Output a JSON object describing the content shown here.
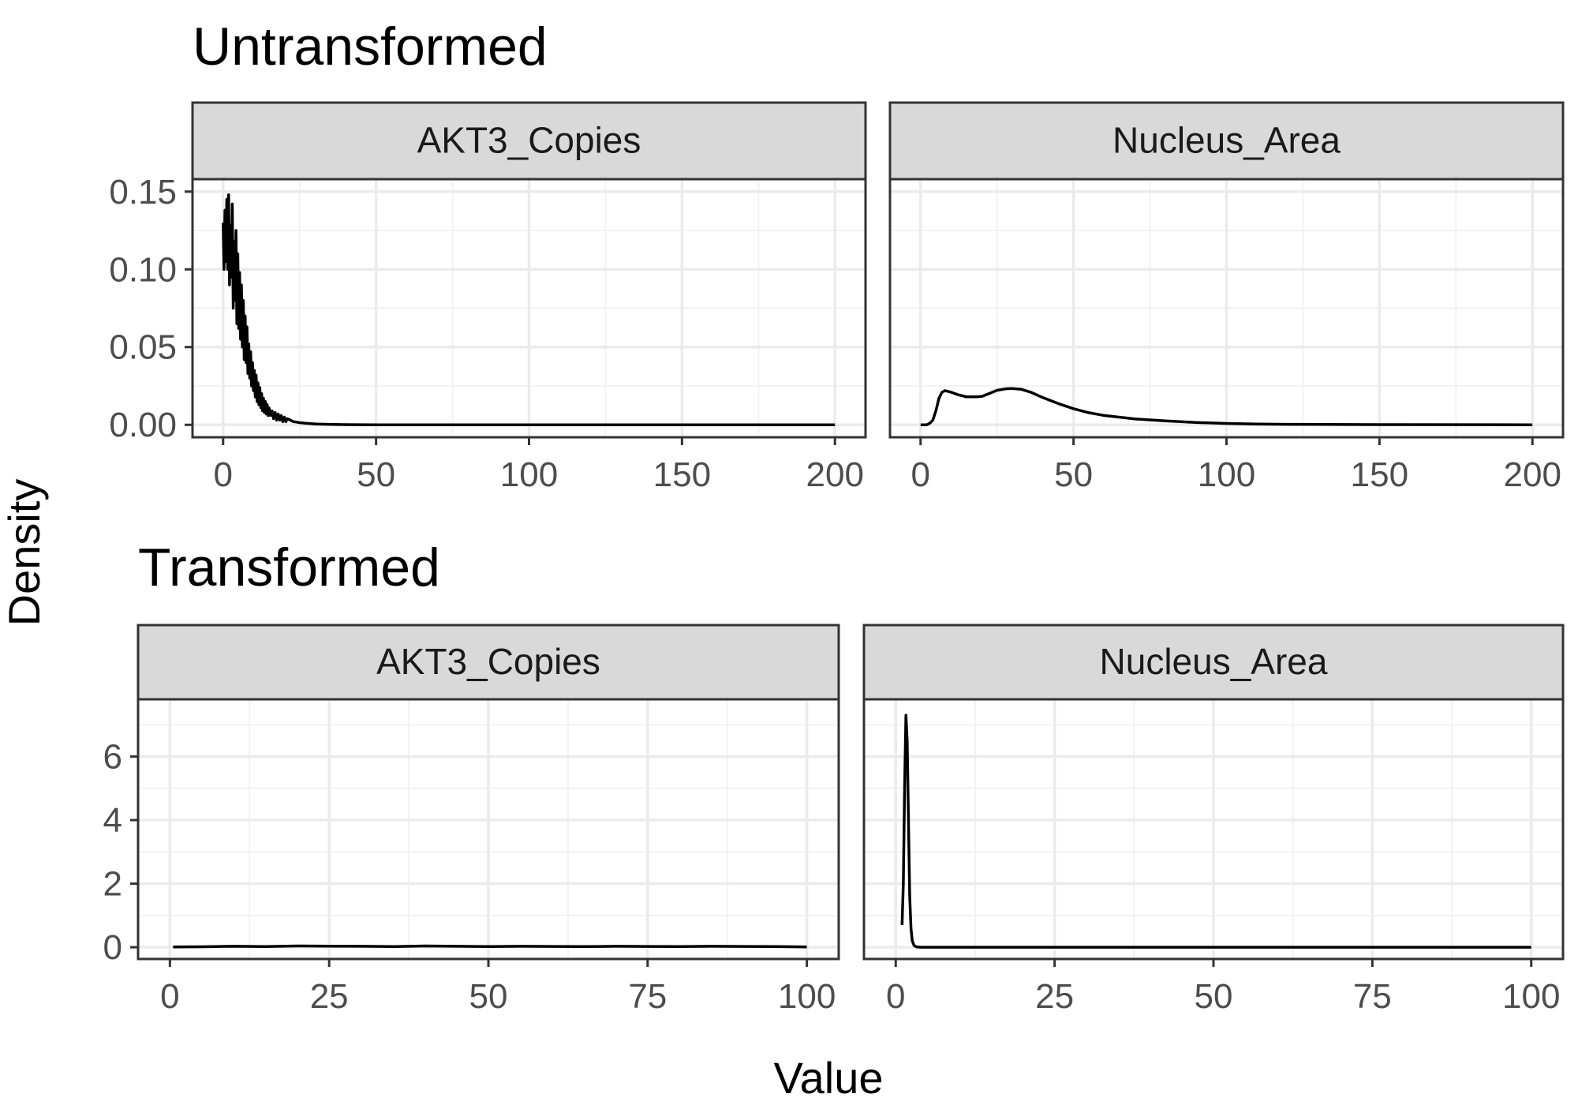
{
  "figure": {
    "ylabel": "Density",
    "xlabel": "Value"
  },
  "chart_data": [
    {
      "type": "line",
      "title": "Untransformed",
      "panel": "AKT3_Copies",
      "xlim": [
        -10,
        210
      ],
      "ylim": [
        -0.008,
        0.158
      ],
      "x_ticks": [
        0,
        50,
        100,
        150,
        200
      ],
      "x_tick_labels": [
        "0",
        "50",
        "100",
        "150",
        "200"
      ],
      "y_ticks": [
        0.0,
        0.05,
        0.1,
        0.15
      ],
      "y_tick_labels": [
        "0.00",
        "0.05",
        "0.10",
        "0.15"
      ],
      "grid": true,
      "x": [
        0,
        0.3,
        0.6,
        0.9,
        1.2,
        1.5,
        1.8,
        2.1,
        2.4,
        2.7,
        3.0,
        3.3,
        3.6,
        3.9,
        4.2,
        4.5,
        4.8,
        5.1,
        5.4,
        5.7,
        6.0,
        6.3,
        6.6,
        6.9,
        7.2,
        7.5,
        7.8,
        8.1,
        8.4,
        8.7,
        9.0,
        9.3,
        9.6,
        9.9,
        10.2,
        10.5,
        10.8,
        11.1,
        11.4,
        11.7,
        12.0,
        12.3,
        12.6,
        12.9,
        13.2,
        13.5,
        13.8,
        14.1,
        14.4,
        14.7,
        15.0,
        15.5,
        16.0,
        16.5,
        17.0,
        17.5,
        18.0,
        18.5,
        19.0,
        19.5,
        20.0,
        20.5,
        21.0,
        22,
        23,
        24,
        25,
        27,
        30,
        33,
        36,
        40,
        45,
        50,
        60,
        80,
        100,
        150,
        200
      ],
      "y": [
        0.13,
        0.1,
        0.138,
        0.105,
        0.145,
        0.1,
        0.148,
        0.09,
        0.128,
        0.095,
        0.142,
        0.075,
        0.118,
        0.08,
        0.125,
        0.065,
        0.11,
        0.062,
        0.098,
        0.055,
        0.09,
        0.05,
        0.08,
        0.042,
        0.07,
        0.04,
        0.063,
        0.033,
        0.052,
        0.03,
        0.047,
        0.025,
        0.04,
        0.022,
        0.035,
        0.018,
        0.032,
        0.015,
        0.027,
        0.013,
        0.024,
        0.011,
        0.02,
        0.009,
        0.017,
        0.008,
        0.015,
        0.007,
        0.013,
        0.006,
        0.011,
        0.006,
        0.009,
        0.004,
        0.008,
        0.003,
        0.007,
        0.003,
        0.006,
        0.002,
        0.005,
        0.002,
        0.004,
        0.003,
        0.002,
        0.0018,
        0.0014,
        0.001,
        0.0006,
        0.0004,
        0.0002,
        0.0001,
        5e-05,
        2e-05,
        0,
        0,
        0,
        0,
        0
      ]
    },
    {
      "type": "line",
      "title": "Untransformed",
      "panel": "Nucleus_Area",
      "xlim": [
        -10,
        210
      ],
      "ylim": [
        -0.008,
        0.158
      ],
      "x_ticks": [
        0,
        50,
        100,
        150,
        200
      ],
      "x_tick_labels": [
        "0",
        "50",
        "100",
        "150",
        "200"
      ],
      "y_ticks": [
        0.0,
        0.05,
        0.1,
        0.15
      ],
      "grid": true,
      "x": [
        0,
        2,
        3,
        4,
        5,
        6,
        7,
        8,
        10,
        12,
        15,
        18,
        20,
        22,
        25,
        28,
        30,
        33,
        36,
        40,
        45,
        50,
        55,
        60,
        70,
        80,
        90,
        100,
        110,
        120,
        150,
        200
      ],
      "y": [
        0,
        0,
        0.001,
        0.003,
        0.009,
        0.017,
        0.021,
        0.022,
        0.021,
        0.0195,
        0.018,
        0.018,
        0.0183,
        0.0198,
        0.0222,
        0.0232,
        0.0233,
        0.0228,
        0.021,
        0.0175,
        0.0137,
        0.0104,
        0.0078,
        0.006,
        0.0038,
        0.0025,
        0.0015,
        0.0009,
        0.0005,
        0.0003,
        0.0001,
        0
      ]
    },
    {
      "type": "line",
      "title": "Transformed",
      "panel": "AKT3_Copies",
      "xlim": [
        -5,
        105
      ],
      "ylim": [
        -0.37,
        7.8
      ],
      "x_ticks": [
        0,
        25,
        50,
        75,
        100
      ],
      "x_tick_labels": [
        "0",
        "25",
        "50",
        "75",
        "100"
      ],
      "y_ticks": [
        0,
        2,
        4,
        6
      ],
      "y_tick_labels": [
        "0",
        "2",
        "4",
        "6"
      ],
      "grid": true,
      "x": [
        0.5,
        5,
        10,
        15,
        20,
        25,
        30,
        35,
        40,
        45,
        50,
        55,
        60,
        65,
        70,
        75,
        80,
        85,
        90,
        95,
        100
      ],
      "y": [
        0.01,
        0.015,
        0.03,
        0.02,
        0.04,
        0.035,
        0.03,
        0.02,
        0.04,
        0.03,
        0.02,
        0.03,
        0.025,
        0.02,
        0.03,
        0.025,
        0.02,
        0.03,
        0.025,
        0.02,
        0.01
      ]
    },
    {
      "type": "line",
      "title": "Transformed",
      "panel": "Nucleus_Area",
      "xlim": [
        -5,
        105
      ],
      "ylim": [
        -0.37,
        7.8
      ],
      "x_ticks": [
        0,
        25,
        50,
        75,
        100
      ],
      "x_tick_labels": [
        "0",
        "25",
        "50",
        "75",
        "100"
      ],
      "y_ticks": [
        0,
        2,
        4,
        6
      ],
      "grid": true,
      "x": [
        1.0,
        1.2,
        1.4,
        1.6,
        1.8,
        2.0,
        2.2,
        2.4,
        2.6,
        2.9,
        3.3,
        4,
        6,
        10,
        20,
        50,
        100
      ],
      "y": [
        0.7,
        2.0,
        5.0,
        7.3,
        6.5,
        4.0,
        1.6,
        0.6,
        0.2,
        0.05,
        0.01,
        0,
        0,
        0,
        0,
        0,
        0
      ]
    }
  ]
}
